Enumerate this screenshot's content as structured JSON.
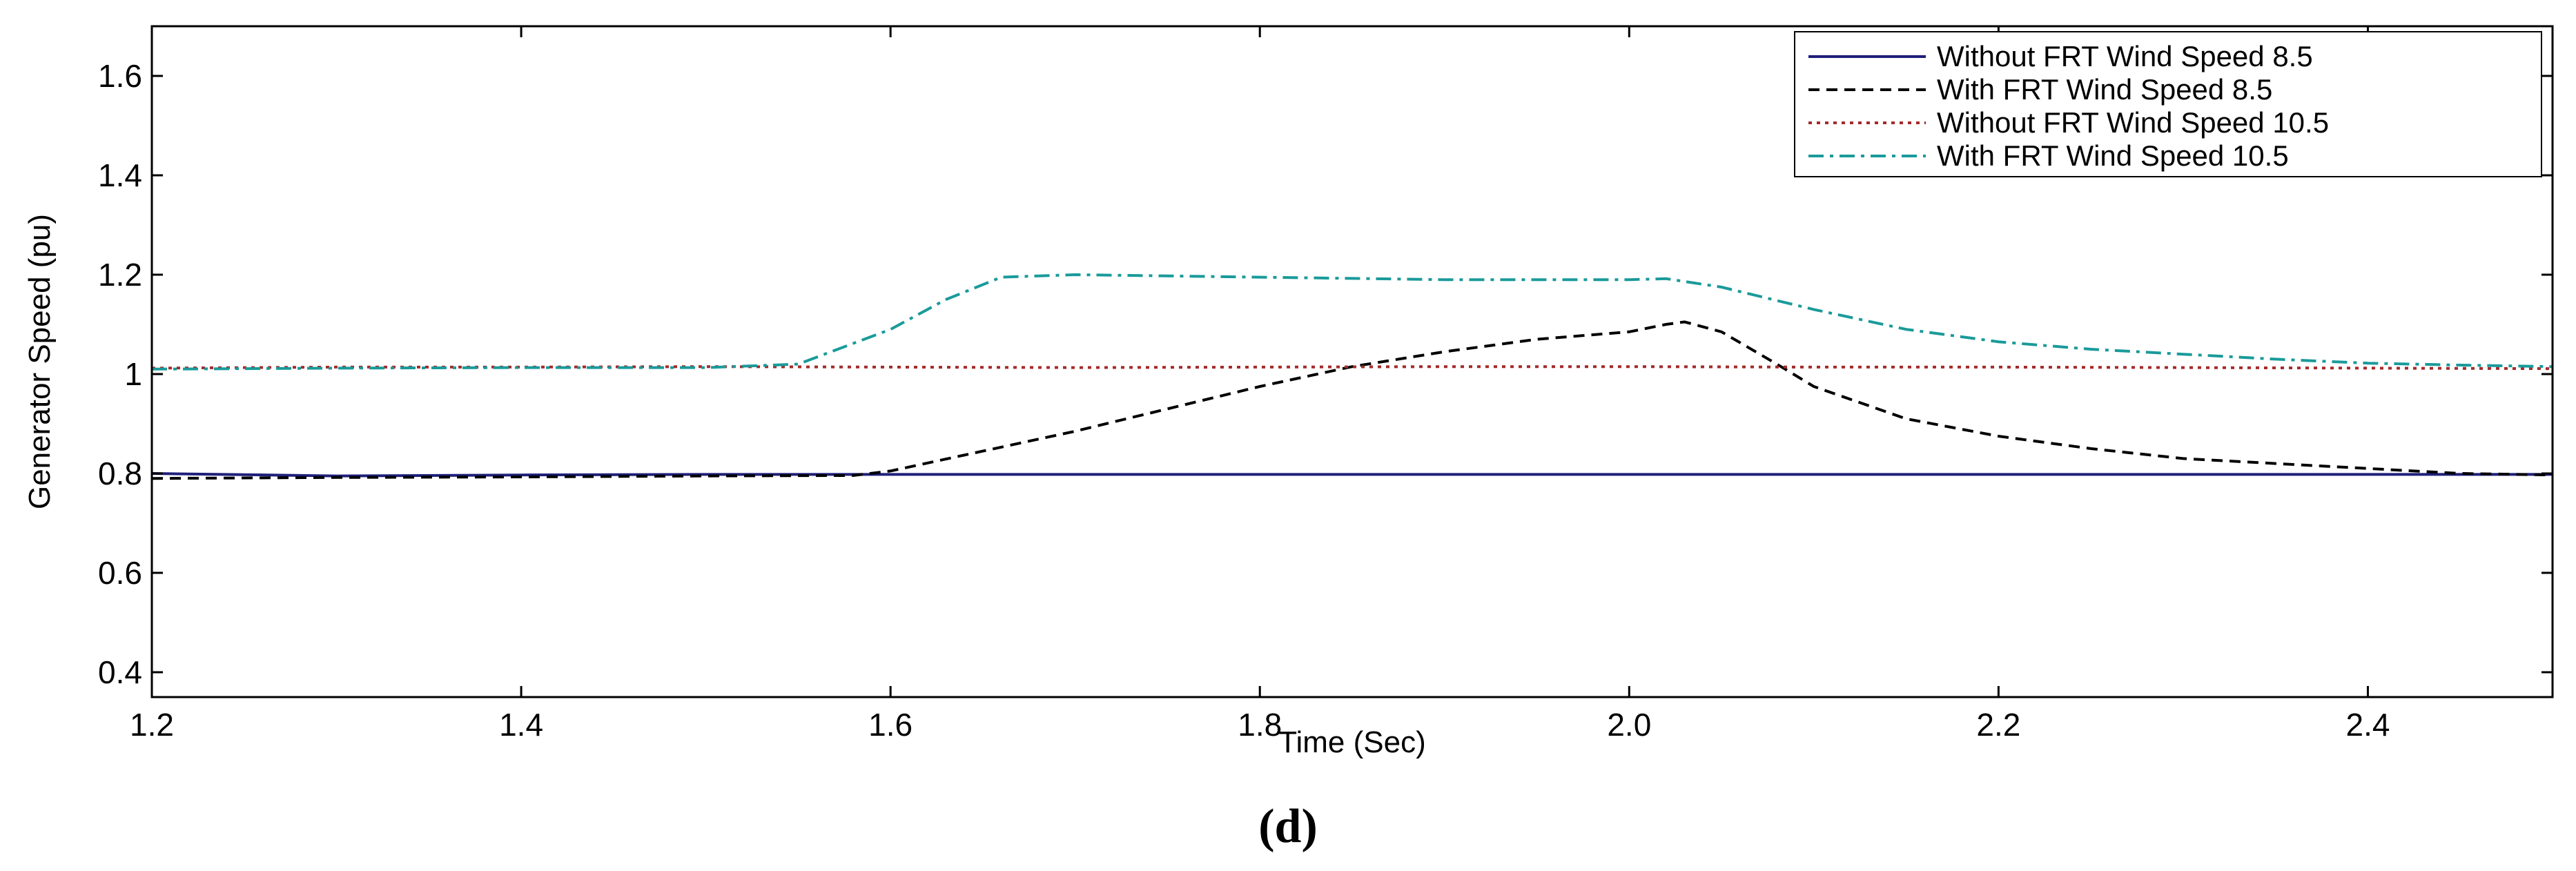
{
  "chart_data": {
    "type": "line",
    "title": "",
    "caption": "(d)",
    "xlabel": "Time (Sec)",
    "ylabel": "Generator Speed (pu)",
    "xlim": [
      1.2,
      2.5
    ],
    "ylim": [
      0.35,
      1.7
    ],
    "xticks": [
      "1.2",
      "1.4",
      "1.6",
      "1.8",
      "2.0",
      "2.2",
      "2.4"
    ],
    "yticks": [
      "0.4",
      "0.6",
      "0.8",
      "1",
      "1.2",
      "1.4",
      "1.6"
    ],
    "grid": false,
    "legend_position": "top-right",
    "series": [
      {
        "name": "Without FRT Wind Speed 8.5",
        "color": "#1f1f7a",
        "style": "solid",
        "x": [
          1.2,
          1.3,
          1.4,
          1.5,
          1.6,
          1.7,
          1.8,
          1.9,
          2.0,
          2.1,
          2.2,
          2.3,
          2.4,
          2.5
        ],
        "y": [
          0.8,
          0.795,
          0.797,
          0.798,
          0.798,
          0.798,
          0.798,
          0.798,
          0.798,
          0.798,
          0.798,
          0.798,
          0.798,
          0.798
        ]
      },
      {
        "name": "With FRT Wind Speed 8.5",
        "color": "#000000",
        "style": "dashed",
        "x": [
          1.2,
          1.3,
          1.4,
          1.5,
          1.58,
          1.6,
          1.65,
          1.7,
          1.75,
          1.8,
          1.85,
          1.9,
          1.95,
          2.0,
          2.02,
          2.03,
          2.05,
          2.08,
          2.1,
          2.15,
          2.2,
          2.25,
          2.3,
          2.35,
          2.4,
          2.45,
          2.5
        ],
        "y": [
          0.79,
          0.792,
          0.793,
          0.795,
          0.796,
          0.805,
          0.845,
          0.885,
          0.93,
          0.975,
          1.015,
          1.045,
          1.07,
          1.085,
          1.1,
          1.105,
          1.085,
          1.02,
          0.975,
          0.91,
          0.875,
          0.85,
          0.83,
          0.82,
          0.81,
          0.8,
          0.797
        ]
      },
      {
        "name": "Without FRT Wind Speed 10.5",
        "color": "#a52a2a",
        "style": "dotted",
        "x": [
          1.2,
          1.3,
          1.4,
          1.5,
          1.6,
          1.7,
          1.8,
          1.9,
          2.0,
          2.1,
          2.2,
          2.3,
          2.4,
          2.5
        ],
        "y": [
          1.012,
          1.014,
          1.014,
          1.015,
          1.014,
          1.013,
          1.014,
          1.015,
          1.015,
          1.014,
          1.014,
          1.013,
          1.012,
          1.011
        ]
      },
      {
        "name": "With FRT Wind Speed 10.5",
        "color": "#1a9a9a",
        "style": "dashdot",
        "x": [
          1.2,
          1.3,
          1.4,
          1.5,
          1.55,
          1.6,
          1.63,
          1.66,
          1.7,
          1.8,
          1.9,
          2.0,
          2.02,
          2.05,
          2.1,
          2.15,
          2.2,
          2.25,
          2.3,
          2.35,
          2.4,
          2.45,
          2.5
        ],
        "y": [
          1.01,
          1.012,
          1.013,
          1.013,
          1.02,
          1.09,
          1.15,
          1.195,
          1.2,
          1.195,
          1.19,
          1.19,
          1.192,
          1.175,
          1.13,
          1.09,
          1.065,
          1.05,
          1.04,
          1.03,
          1.022,
          1.018,
          1.015
        ]
      }
    ]
  }
}
